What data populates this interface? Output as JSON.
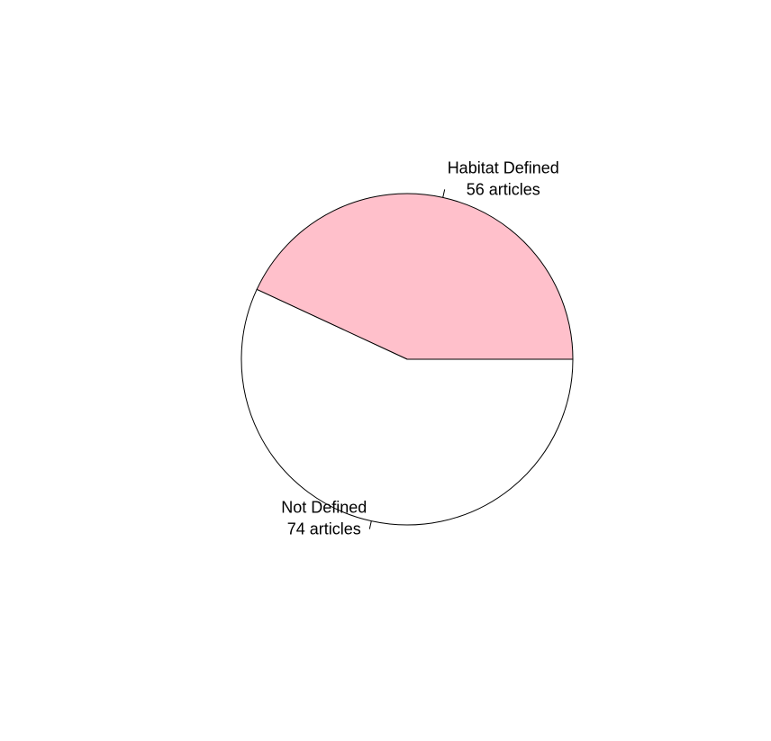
{
  "chart_data": {
    "type": "pie",
    "title": "",
    "direction": "counterclockwise",
    "start_angle_degrees": 0,
    "slices": [
      {
        "label_line1": "Habitat Defined",
        "label_line2": "56 articles",
        "value": 56,
        "color": "#FFC0CB"
      },
      {
        "label_line1": "Not Defined",
        "label_line2": "74 articles",
        "value": 74,
        "color": "#FFFFFF"
      }
    ]
  }
}
